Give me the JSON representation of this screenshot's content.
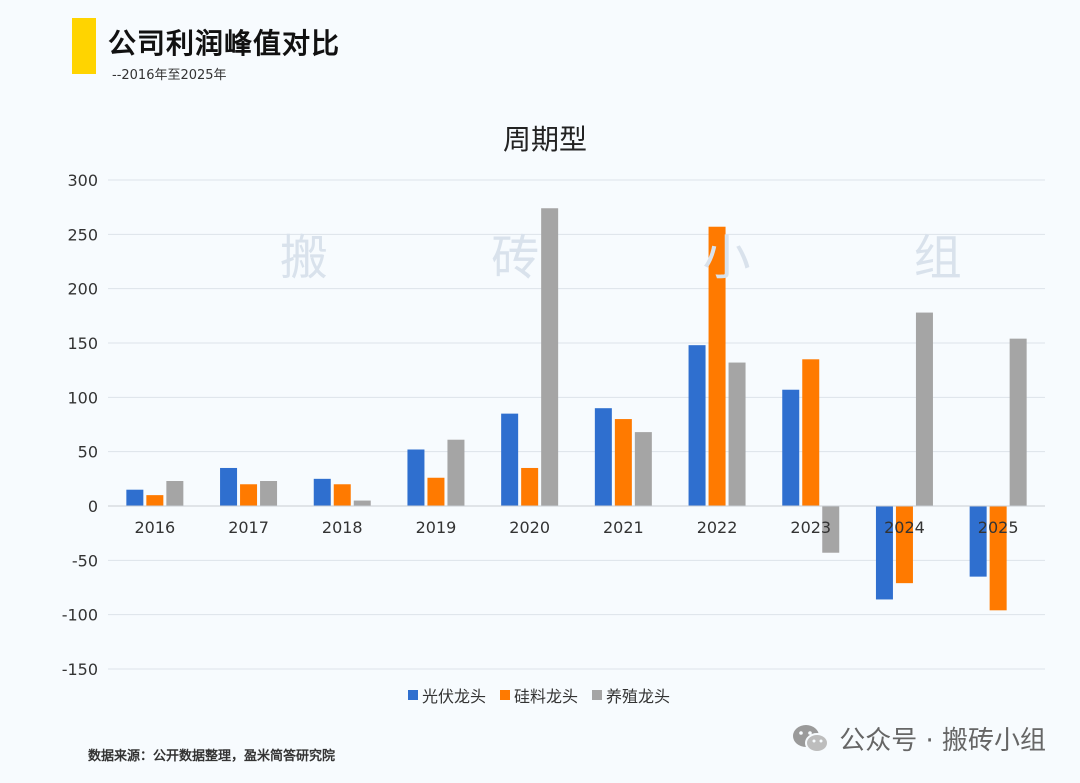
{
  "header": {
    "title": "公司利润峰值对比",
    "subtitle": "--2016年至2025年"
  },
  "watermark": {
    "center_text": "搬 砖 小 组",
    "footer_text": "公众号 · 搬砖小组"
  },
  "source": "数据来源：公开数据整理，盈米简答研究院",
  "colors": {
    "accent": "#ffd400",
    "series1": "#2f6fcf",
    "series2": "#ff7a00",
    "series3": "#a5a5a5"
  },
  "chart_data": {
    "type": "bar",
    "title": "周期型",
    "categories": [
      "2016",
      "2017",
      "2018",
      "2019",
      "2020",
      "2021",
      "2022",
      "2023",
      "2024",
      "2025"
    ],
    "series": [
      {
        "name": "光伏龙头",
        "values": [
          15,
          35,
          25,
          52,
          85,
          90,
          148,
          107,
          -86,
          -65
        ]
      },
      {
        "name": "硅料龙头",
        "values": [
          10,
          20,
          20,
          26,
          35,
          80,
          257,
          135,
          -71,
          -96
        ]
      },
      {
        "name": "养殖龙头",
        "values": [
          23,
          23,
          5,
          61,
          274,
          68,
          132,
          -43,
          178,
          154
        ]
      }
    ],
    "yticks": [
      300,
      250,
      200,
      150,
      100,
      50,
      0,
      -50,
      -100,
      -150
    ],
    "ylim": [
      -150,
      300
    ],
    "grid": true,
    "legend": "bottom"
  }
}
